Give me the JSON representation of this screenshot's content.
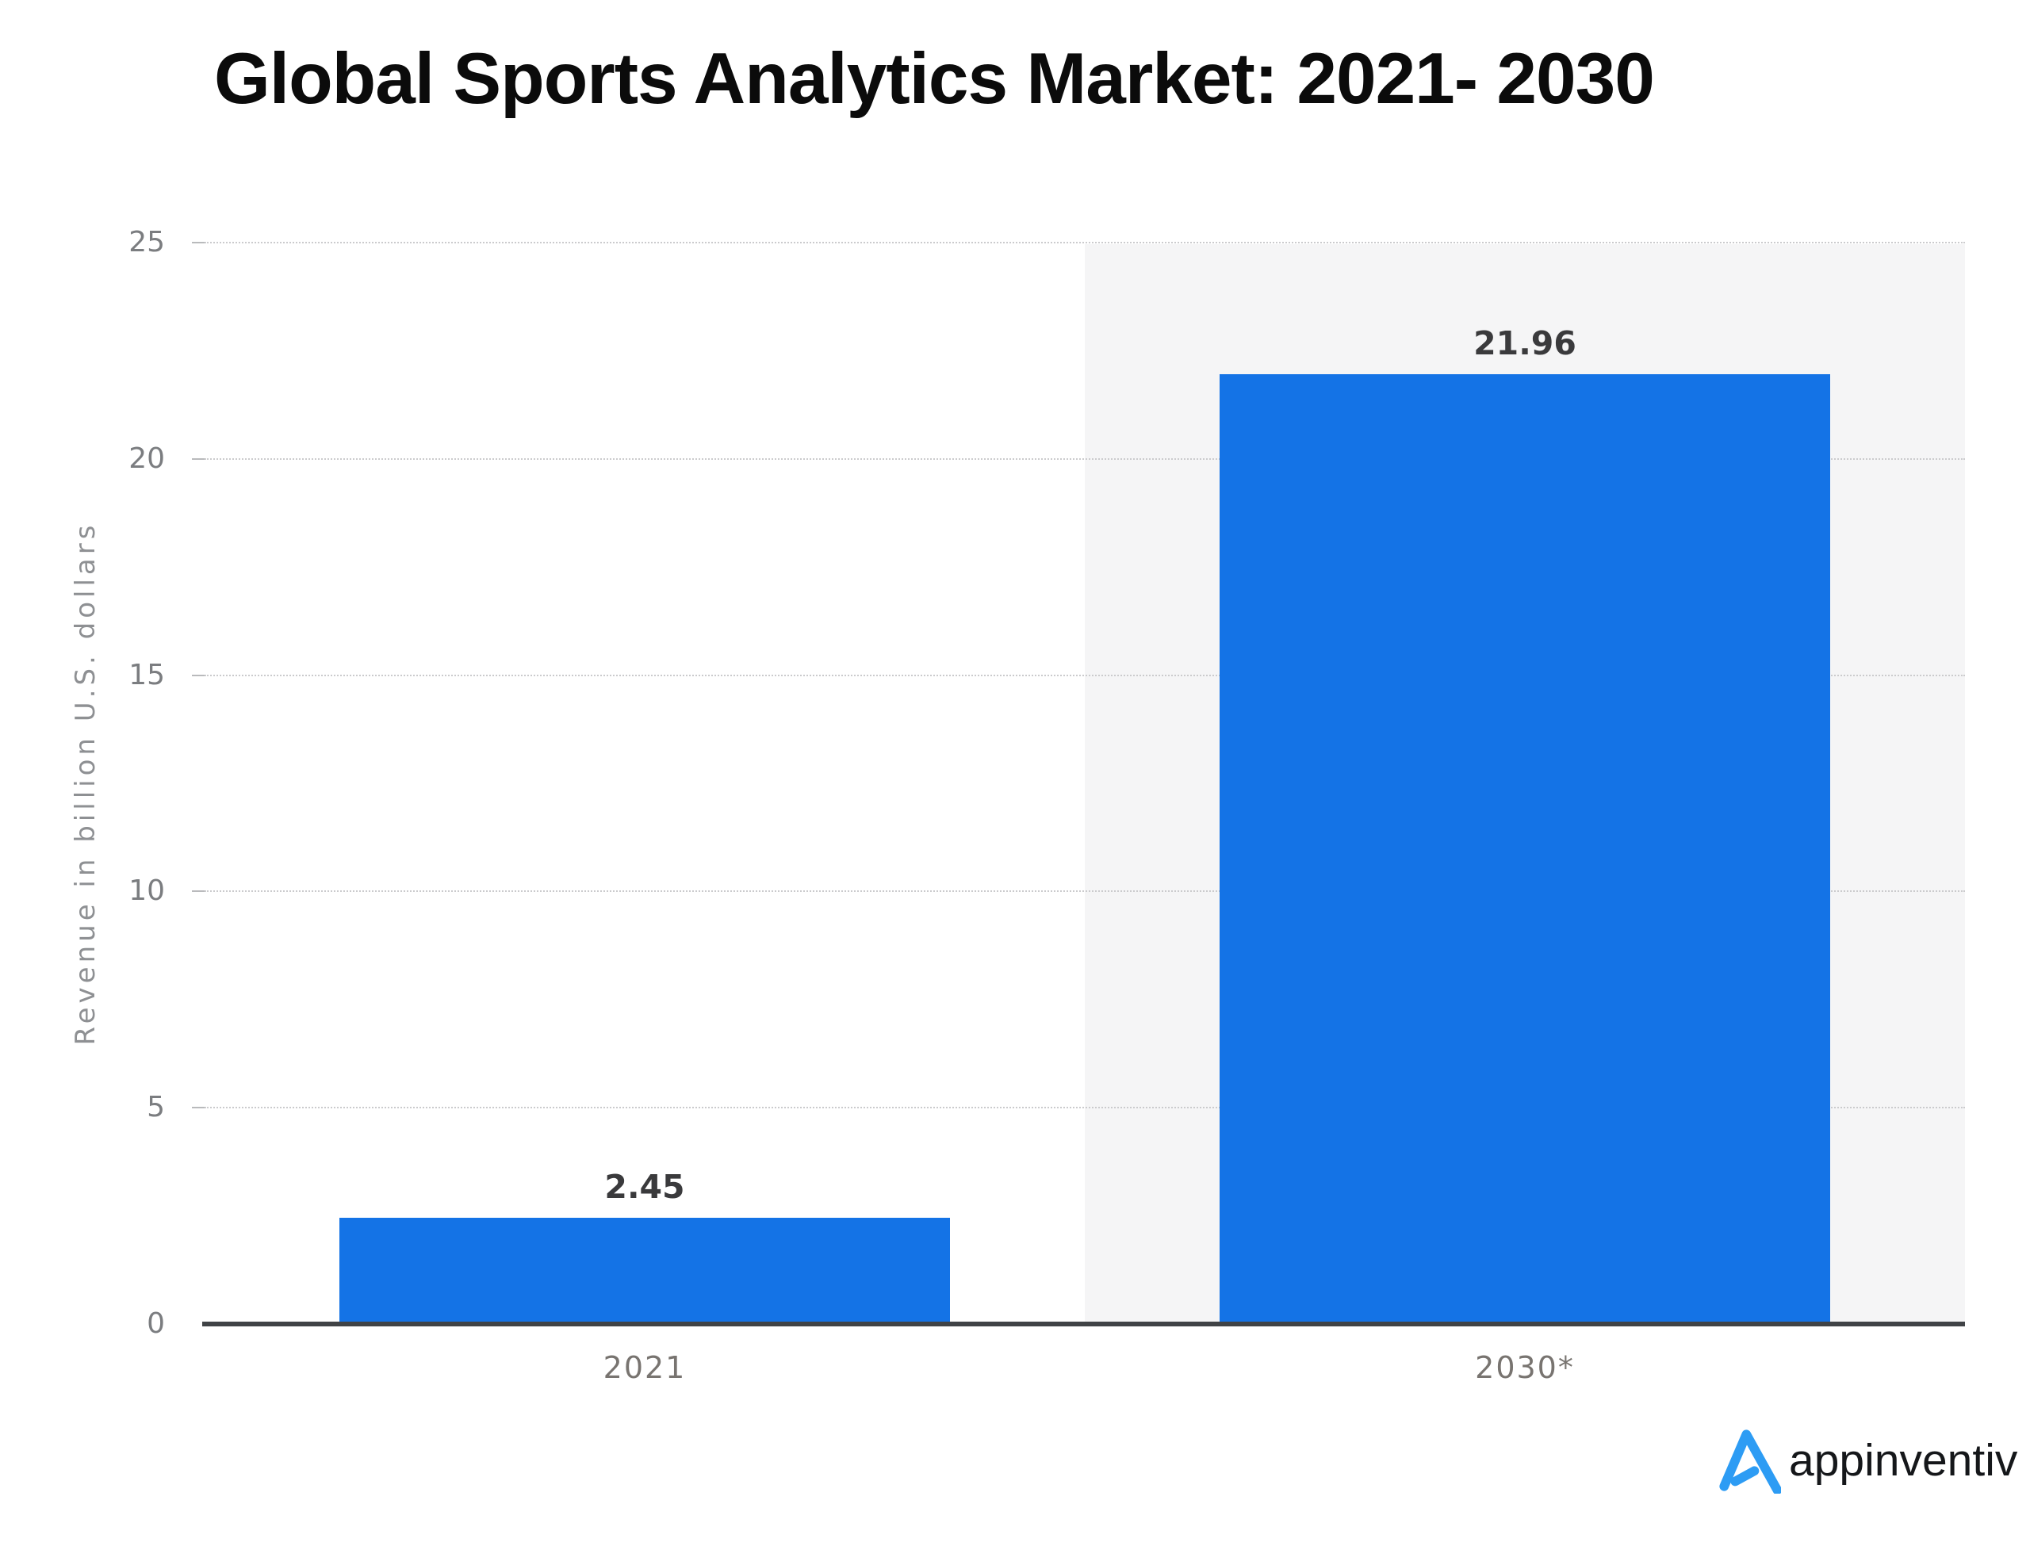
{
  "chart_data": {
    "type": "bar",
    "title": "Global Sports Analytics Market: 2021- 2030",
    "categories": [
      "2021",
      "2030*"
    ],
    "values": [
      2.45,
      21.96
    ],
    "value_labels": [
      "2.45",
      "21.96"
    ],
    "xlabel": "",
    "ylabel": "Revenue in billion U.S. dollars",
    "ylim": [
      0,
      25
    ],
    "yticks": [
      0,
      5,
      10,
      15,
      20,
      25
    ],
    "grid": "horizontal dotted gridlines, highlight band behind second category, no legend",
    "bar_color": "#1473e6",
    "highlight_band_color": "#f5f5f6",
    "gridline_color": "#cbcbcd",
    "axis_line_color": "#404346",
    "tick_label_color": "#7b7d80",
    "value_label_color": "#3a3a3c",
    "title_color": "#0b0b0b"
  },
  "branding": {
    "logo_text": "appinventiv",
    "logo_mark": "appinventiv-triangle-a",
    "logo_mark_color": "#2d9cf4",
    "logo_text_color": "#15171a"
  }
}
